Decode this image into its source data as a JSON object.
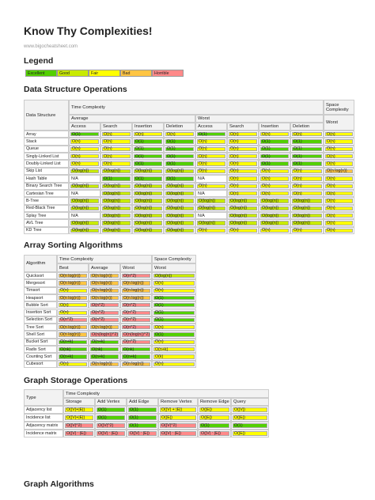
{
  "header": {
    "title": "Know Thy Complexities!",
    "url": "www.bigocheatsheet.com"
  },
  "legend": {
    "title": "Legend",
    "items": [
      {
        "label": "Excellent",
        "color": "#53d000"
      },
      {
        "label": "Good",
        "color": "#c8ea00"
      },
      {
        "label": "Fair",
        "color": "#ffff00"
      },
      {
        "label": "Bad",
        "color": "#ffc543"
      },
      {
        "label": "Horrible",
        "color": "#ff8989"
      }
    ]
  },
  "data_structures": {
    "title": "Data Structure Operations",
    "head": {
      "name": "Data Structure",
      "time": "Time Complexity",
      "space": "Space Complexity",
      "average": "Average",
      "worst": "Worst",
      "space_worst": "Worst",
      "ops": [
        "Access",
        "Search",
        "Insertion",
        "Deletion",
        "Access",
        "Search",
        "Insertion",
        "Deletion"
      ]
    },
    "rows": [
      {
        "name": "Array",
        "cells": [
          "O(1)",
          "O(n)",
          "O(n)",
          "O(n)",
          "O(1)",
          "O(n)",
          "O(n)",
          "O(n)",
          "O(n)"
        ],
        "colors": [
          "#53d000",
          "#ffff00",
          "#ffff00",
          "#ffff00",
          "#53d000",
          "#ffff00",
          "#ffff00",
          "#ffff00",
          "#ffff00"
        ]
      },
      {
        "name": "Stack",
        "cells": [
          "O(n)",
          "O(n)",
          "O(1)",
          "O(1)",
          "O(n)",
          "O(n)",
          "O(1)",
          "O(1)",
          "O(n)"
        ],
        "colors": [
          "#ffff00",
          "#ffff00",
          "#53d000",
          "#53d000",
          "#ffff00",
          "#ffff00",
          "#53d000",
          "#53d000",
          "#ffff00"
        ]
      },
      {
        "name": "Queue",
        "cells": [
          "O(n)",
          "O(n)",
          "O(1)",
          "O(1)",
          "O(n)",
          "O(n)",
          "O(1)",
          "O(1)",
          "O(n)"
        ],
        "colors": [
          "#ffff00",
          "#ffff00",
          "#53d000",
          "#53d000",
          "#ffff00",
          "#ffff00",
          "#53d000",
          "#53d000",
          "#ffff00"
        ]
      },
      {
        "name": "Singly-Linked List",
        "cells": [
          "O(n)",
          "O(n)",
          "O(1)",
          "O(1)",
          "O(n)",
          "O(n)",
          "O(1)",
          "O(1)",
          "O(n)"
        ],
        "colors": [
          "#ffff00",
          "#ffff00",
          "#53d000",
          "#53d000",
          "#ffff00",
          "#ffff00",
          "#53d000",
          "#53d000",
          "#ffff00"
        ]
      },
      {
        "name": "Doubly-Linked List",
        "cells": [
          "O(n)",
          "O(n)",
          "O(1)",
          "O(1)",
          "O(n)",
          "O(n)",
          "O(1)",
          "O(1)",
          "O(n)"
        ],
        "colors": [
          "#ffff00",
          "#ffff00",
          "#53d000",
          "#53d000",
          "#ffff00",
          "#ffff00",
          "#53d000",
          "#53d000",
          "#ffff00"
        ]
      },
      {
        "name": "Skip List",
        "cells": [
          "O(log(n))",
          "O(log(n))",
          "O(log(n))",
          "O(log(n))",
          "O(n)",
          "O(n)",
          "O(n)",
          "O(n)",
          "O(n log(n))"
        ],
        "colors": [
          "#c8ea00",
          "#c8ea00",
          "#c8ea00",
          "#c8ea00",
          "#ffff00",
          "#ffff00",
          "#ffff00",
          "#ffff00",
          "#ffc543"
        ]
      },
      {
        "name": "Hash Table",
        "cells": [
          "N/A",
          "O(1)",
          "O(1)",
          "O(1)",
          "N/A",
          "O(n)",
          "O(n)",
          "O(n)",
          "O(n)"
        ],
        "colors": [
          null,
          "#53d000",
          "#53d000",
          "#53d000",
          null,
          "#ffff00",
          "#ffff00",
          "#ffff00",
          "#ffff00"
        ]
      },
      {
        "name": "Binary Search Tree",
        "cells": [
          "O(log(n))",
          "O(log(n))",
          "O(log(n))",
          "O(log(n))",
          "O(n)",
          "O(n)",
          "O(n)",
          "O(n)",
          "O(n)"
        ],
        "colors": [
          "#c8ea00",
          "#c8ea00",
          "#c8ea00",
          "#c8ea00",
          "#ffff00",
          "#ffff00",
          "#ffff00",
          "#ffff00",
          "#ffff00"
        ]
      },
      {
        "name": "Cartesian Tree",
        "cells": [
          "N/A",
          "O(log(n))",
          "O(log(n))",
          "O(log(n))",
          "N/A",
          "O(n)",
          "O(n)",
          "O(n)",
          "O(n)"
        ],
        "colors": [
          null,
          "#c8ea00",
          "#c8ea00",
          "#c8ea00",
          null,
          "#ffff00",
          "#ffff00",
          "#ffff00",
          "#ffff00"
        ]
      },
      {
        "name": "B-Tree",
        "cells": [
          "O(log(n))",
          "O(log(n))",
          "O(log(n))",
          "O(log(n))",
          "O(log(n))",
          "O(log(n))",
          "O(log(n))",
          "O(log(n))",
          "O(n)"
        ],
        "colors": [
          "#c8ea00",
          "#c8ea00",
          "#c8ea00",
          "#c8ea00",
          "#c8ea00",
          "#c8ea00",
          "#c8ea00",
          "#c8ea00",
          "#ffff00"
        ]
      },
      {
        "name": "Red-Black Tree",
        "cells": [
          "O(log(n))",
          "O(log(n))",
          "O(log(n))",
          "O(log(n))",
          "O(log(n))",
          "O(log(n))",
          "O(log(n))",
          "O(log(n))",
          "O(n)"
        ],
        "colors": [
          "#c8ea00",
          "#c8ea00",
          "#c8ea00",
          "#c8ea00",
          "#c8ea00",
          "#c8ea00",
          "#c8ea00",
          "#c8ea00",
          "#ffff00"
        ]
      },
      {
        "name": "Splay Tree",
        "cells": [
          "N/A",
          "O(log(n))",
          "O(log(n))",
          "O(log(n))",
          "N/A",
          "O(log(n))",
          "O(log(n))",
          "O(log(n))",
          "O(n)"
        ],
        "colors": [
          null,
          "#c8ea00",
          "#c8ea00",
          "#c8ea00",
          null,
          "#c8ea00",
          "#c8ea00",
          "#c8ea00",
          "#ffff00"
        ]
      },
      {
        "name": "AVL Tree",
        "cells": [
          "O(log(n))",
          "O(log(n))",
          "O(log(n))",
          "O(log(n))",
          "O(log(n))",
          "O(log(n))",
          "O(log(n))",
          "O(log(n))",
          "O(n)"
        ],
        "colors": [
          "#c8ea00",
          "#c8ea00",
          "#c8ea00",
          "#c8ea00",
          "#c8ea00",
          "#c8ea00",
          "#c8ea00",
          "#c8ea00",
          "#ffff00"
        ]
      },
      {
        "name": "KD Tree",
        "cells": [
          "O(log(n))",
          "O(log(n))",
          "O(log(n))",
          "O(log(n))",
          "O(n)",
          "O(n)",
          "O(n)",
          "O(n)",
          "O(n)"
        ],
        "colors": [
          "#c8ea00",
          "#c8ea00",
          "#c8ea00",
          "#c8ea00",
          "#ffff00",
          "#ffff00",
          "#ffff00",
          "#ffff00",
          "#ffff00"
        ]
      }
    ]
  },
  "sorting": {
    "title": "Array Sorting Algorithms",
    "head": {
      "name": "Algorithm",
      "time": "Time Complexity",
      "space": "Space Complexity",
      "cols": [
        "Best",
        "Average",
        "Worst",
        "Worst"
      ]
    },
    "rows": [
      {
        "name": "Quicksort",
        "cells": [
          "O(n log(n))",
          "O(n log(n))",
          "O(n^2)",
          "O(log(n))"
        ],
        "colors": [
          "#ffc543",
          "#ffc543",
          "#ff8989",
          "#c8ea00"
        ]
      },
      {
        "name": "Mergesort",
        "cells": [
          "O(n log(n))",
          "O(n log(n))",
          "O(n log(n))",
          "O(n)"
        ],
        "colors": [
          "#ffc543",
          "#ffc543",
          "#ffc543",
          "#ffff00"
        ]
      },
      {
        "name": "Timsort",
        "cells": [
          "O(n)",
          "O(n log(n))",
          "O(n log(n))",
          "O(n)"
        ],
        "colors": [
          "#ffff00",
          "#ffc543",
          "#ffc543",
          "#ffff00"
        ]
      },
      {
        "name": "Heapsort",
        "cells": [
          "O(n log(n))",
          "O(n log(n))",
          "O(n log(n))",
          "O(1)"
        ],
        "colors": [
          "#ffc543",
          "#ffc543",
          "#ffc543",
          "#53d000"
        ]
      },
      {
        "name": "Bubble Sort",
        "cells": [
          "O(n)",
          "O(n^2)",
          "O(n^2)",
          "O(1)"
        ],
        "colors": [
          "#ffff00",
          "#ff8989",
          "#ff8989",
          "#53d000"
        ]
      },
      {
        "name": "Insertion Sort",
        "cells": [
          "O(n)",
          "O(n^2)",
          "O(n^2)",
          "O(1)"
        ],
        "colors": [
          "#ffff00",
          "#ff8989",
          "#ff8989",
          "#53d000"
        ]
      },
      {
        "name": "Selection Sort",
        "cells": [
          "O(n^2)",
          "O(n^2)",
          "O(n^2)",
          "O(1)"
        ],
        "colors": [
          "#ff8989",
          "#ff8989",
          "#ff8989",
          "#53d000"
        ]
      },
      {
        "name": "Tree Sort",
        "cells": [
          "O(n log(n))",
          "O(n log(n))",
          "O(n^2)",
          "O(n)"
        ],
        "colors": [
          "#ffc543",
          "#ffc543",
          "#ff8989",
          "#ffff00"
        ]
      },
      {
        "name": "Shell Sort",
        "cells": [
          "O(n log(n))",
          "O(n(log(n))^2)",
          "O(n(log(n))^2)",
          "O(1)"
        ],
        "colors": [
          "#ffc543",
          "#ff8989",
          "#ff8989",
          "#53d000"
        ]
      },
      {
        "name": "Bucket Sort",
        "cells": [
          "O(n+k)",
          "O(n+k)",
          "O(n^2)",
          "O(n)"
        ],
        "colors": [
          "#53d000",
          "#53d000",
          "#ff8989",
          "#ffff00"
        ]
      },
      {
        "name": "Radix Sort",
        "cells": [
          "O(nk)",
          "O(nk)",
          "O(nk)",
          "O(n+k)"
        ],
        "colors": [
          "#53d000",
          "#53d000",
          "#53d000",
          "#ffff00"
        ]
      },
      {
        "name": "Counting Sort",
        "cells": [
          "O(n+k)",
          "O(n+k)",
          "O(n+k)",
          "O(k)"
        ],
        "colors": [
          "#53d000",
          "#53d000",
          "#53d000",
          "#ffff00"
        ]
      },
      {
        "name": "Cubesort",
        "cells": [
          "O(n)",
          "O(n log(n))",
          "O(n log(n))",
          "O(n)"
        ],
        "colors": [
          "#ffff00",
          "#ffc543",
          "#ffc543",
          "#ffff00"
        ]
      }
    ]
  },
  "graph": {
    "title": "Graph Storage Operations",
    "head": {
      "name": "Type",
      "time": "Time Complexity",
      "cols": [
        "Storage",
        "Add Vertex",
        "Add Edge",
        "Remove Vertex",
        "Remove Edge",
        "Query"
      ]
    },
    "rows": [
      {
        "name": "Adjacency list",
        "cells": [
          "O(|V|+|E|)",
          "O(1)",
          "O(1)",
          "O(|V| + |E|)",
          "O(|E|)",
          "O(|V|)"
        ],
        "colors": [
          "#ffff00",
          "#53d000",
          "#53d000",
          "#ffff00",
          "#ffff00",
          "#ffff00"
        ]
      },
      {
        "name": "Incidence list",
        "cells": [
          "O(|V|+|E|)",
          "O(1)",
          "O(1)",
          "O(|E|)",
          "O(|E|)",
          "O(|E|)"
        ],
        "colors": [
          "#ffff00",
          "#53d000",
          "#53d000",
          "#ffff00",
          "#ffff00",
          "#ffff00"
        ]
      },
      {
        "name": "Adjacency matrix",
        "cells": [
          "O(|V|^2)",
          "O(|V|^2)",
          "O(1)",
          "O(|V|^2)",
          "O(1)",
          "O(1)"
        ],
        "colors": [
          "#ff8989",
          "#ff8989",
          "#53d000",
          "#ff8989",
          "#53d000",
          "#53d000"
        ]
      },
      {
        "name": "Incidence matrix",
        "cells": [
          "O(|V| ⋅ |E|)",
          "O(|V| ⋅ |E|)",
          "O(|V| ⋅ |E|)",
          "O(|V| ⋅ |E|)",
          "O(|V| ⋅ |E|)",
          "O(|E|)"
        ],
        "colors": [
          "#ff8989",
          "#ff8989",
          "#ff8989",
          "#ff8989",
          "#ff8989",
          "#ffff00"
        ]
      }
    ]
  },
  "footer": {
    "next_title": "Graph Algorithms"
  }
}
